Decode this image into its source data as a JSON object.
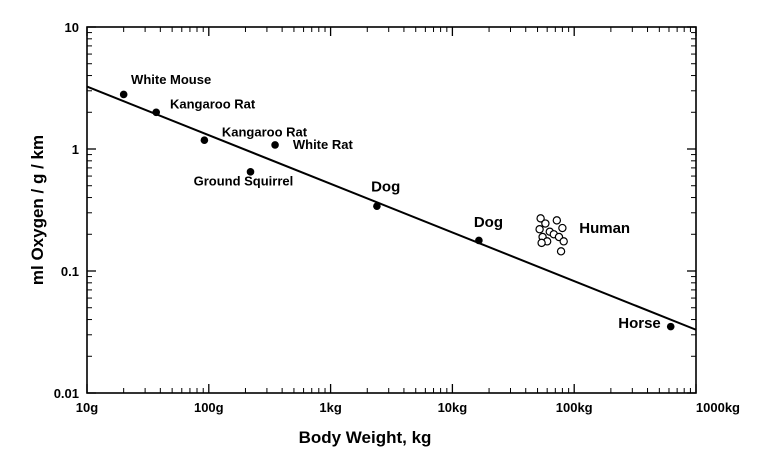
{
  "chart_data": {
    "type": "scatter",
    "title": "",
    "xlabel": "Body Weight, kg",
    "ylabel": "ml Oxygen / g / km",
    "xscale": "log",
    "yscale": "log",
    "xlim": [
      0.01,
      1000
    ],
    "ylim": [
      0.01,
      10
    ],
    "grid": false,
    "legend": "none",
    "x_ticks": [
      {
        "value": 0.01,
        "label": "10g"
      },
      {
        "value": 0.1,
        "label": "100g"
      },
      {
        "value": 1,
        "label": "1kg"
      },
      {
        "value": 10,
        "label": "10kg"
      },
      {
        "value": 100,
        "label": "100kg"
      },
      {
        "value": 1000,
        "label": "1000kg"
      }
    ],
    "y_ticks": [
      {
        "value": 0.01,
        "label": "0.01"
      },
      {
        "value": 0.1,
        "label": "0.1"
      },
      {
        "value": 1,
        "label": "1"
      },
      {
        "value": 10,
        "label": "10"
      }
    ],
    "series": [
      {
        "marker": "filled-circle",
        "points": [
          {
            "x": 0.02,
            "y": 2.8
          },
          {
            "x": 0.037,
            "y": 2.0
          },
          {
            "x": 0.092,
            "y": 1.18
          },
          {
            "x": 0.22,
            "y": 0.65
          },
          {
            "x": 0.35,
            "y": 1.08
          },
          {
            "x": 2.4,
            "y": 0.34
          },
          {
            "x": 16.5,
            "y": 0.178
          },
          {
            "x": 620,
            "y": 0.035
          }
        ]
      },
      {
        "marker": "open-circle",
        "points": [
          {
            "x": 53,
            "y": 0.27
          },
          {
            "x": 58,
            "y": 0.245
          },
          {
            "x": 72,
            "y": 0.26
          },
          {
            "x": 52,
            "y": 0.22
          },
          {
            "x": 63,
            "y": 0.21
          },
          {
            "x": 80,
            "y": 0.225
          },
          {
            "x": 55,
            "y": 0.19
          },
          {
            "x": 68,
            "y": 0.2
          },
          {
            "x": 75,
            "y": 0.19
          },
          {
            "x": 60,
            "y": 0.175
          },
          {
            "x": 54,
            "y": 0.17
          },
          {
            "x": 82,
            "y": 0.175
          },
          {
            "x": 78,
            "y": 0.145
          }
        ]
      }
    ],
    "fit_line": {
      "x": [
        0.01,
        1000
      ],
      "y": [
        3.25,
        0.033
      ]
    },
    "annotations": [
      {
        "text": "White Mouse",
        "x": 0.023,
        "y": 3.4,
        "size": "small"
      },
      {
        "text": "Kangaroo Rat",
        "x": 0.048,
        "y": 2.15,
        "size": "small"
      },
      {
        "text": "Kangaroo Rat",
        "x": 0.128,
        "y": 1.27,
        "size": "small"
      },
      {
        "text": "White Rat",
        "x": 0.49,
        "y": 1.0,
        "size": "small"
      },
      {
        "text": "Ground Squirrel",
        "x": 0.075,
        "y": 0.5,
        "size": "small"
      },
      {
        "text": "Dog",
        "x": 2.15,
        "y": 0.45,
        "size": "large"
      },
      {
        "text": "Dog",
        "x": 15.0,
        "y": 0.23,
        "size": "large"
      },
      {
        "text": "Human",
        "x": 110,
        "y": 0.205,
        "size": "large"
      },
      {
        "text": "Horse",
        "x": 230,
        "y": 0.034,
        "size": "large"
      }
    ]
  }
}
